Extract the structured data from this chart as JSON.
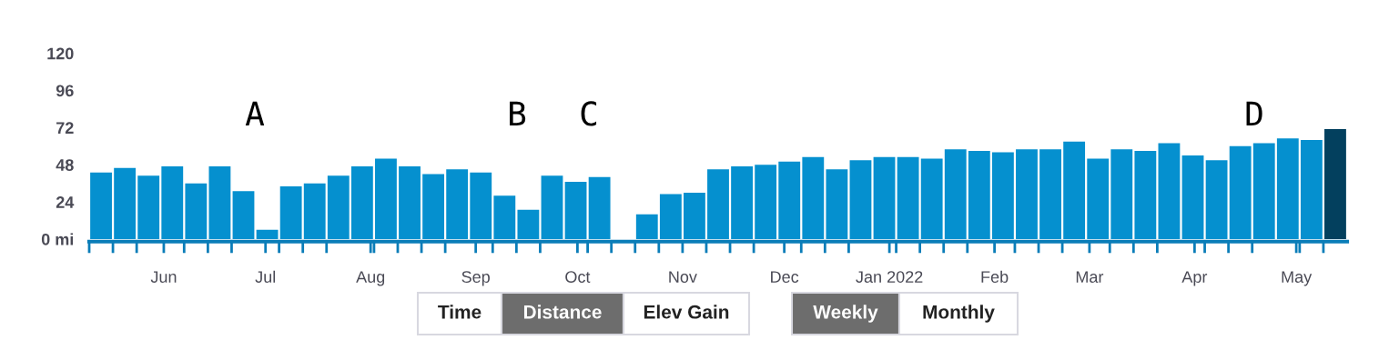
{
  "chart_data": {
    "type": "bar",
    "x": [
      "2021-05-13T12:00",
      "2021-05-20T12:00",
      "2021-05-27T12:00",
      "2021-06-03T12:00",
      "2021-06-10T12:00",
      "2021-06-17T12:00",
      "2021-06-24T12:00",
      "2021-07-01T12:00",
      "2021-07-08T12:00",
      "2021-07-15T12:00",
      "2021-07-22T12:00",
      "2021-07-29T12:00",
      "2021-08-05T12:00",
      "2021-08-12T12:00",
      "2021-08-19T12:00",
      "2021-08-26T12:00",
      "2021-09-02T12:00",
      "2021-09-09T12:00",
      "2021-09-16T12:00",
      "2021-09-23T12:00",
      "2021-09-30T12:00",
      "2021-10-07T12:00",
      "2021-10-14T12:00",
      "2021-10-21T12:00",
      "2021-10-28T12:00",
      "2021-11-04T12:00",
      "2021-11-11T12:00",
      "2021-11-18T12:00",
      "2021-11-25T12:00",
      "2021-12-02T12:00",
      "2021-12-09T12:00",
      "2021-12-16T12:00",
      "2021-12-23T12:00",
      "2021-12-30T12:00",
      "2022-01-06T12:00",
      "2022-01-13T12:00",
      "2022-01-20T12:00",
      "2022-01-27T12:00",
      "2022-02-03T12:00",
      "2022-02-10T12:00",
      "2022-02-17T12:00",
      "2022-02-24T12:00",
      "2022-03-03T12:00",
      "2022-03-10T12:00",
      "2022-03-17T12:00",
      "2022-03-24T12:00",
      "2022-03-31T12:00",
      "2022-04-07T12:00",
      "2022-04-14T12:00",
      "2022-04-21T12:00",
      "2022-04-28T12:00",
      "2022-05-05T12:00",
      "2022-05-12T12:00"
    ],
    "values": [
      43,
      46,
      41,
      47,
      36,
      47,
      31,
      6,
      34,
      36,
      41,
      47,
      52,
      47,
      42,
      45,
      43,
      28,
      19,
      41,
      37,
      40,
      0,
      16,
      29,
      30,
      45,
      47,
      48,
      50,
      53,
      45,
      51,
      53,
      53,
      52,
      58,
      57,
      56,
      58,
      58,
      63,
      52,
      58,
      57,
      62,
      54,
      51,
      60,
      62,
      65,
      64,
      71
    ],
    "colors": [
      "#0590cf",
      "#0590cf",
      "#0590cf",
      "#0590cf",
      "#0590cf",
      "#0590cf",
      "#0590cf",
      "#0590cf",
      "#0590cf",
      "#0590cf",
      "#0590cf",
      "#0590cf",
      "#0590cf",
      "#0590cf",
      "#0590cf",
      "#0590cf",
      "#0590cf",
      "#0590cf",
      "#0590cf",
      "#0590cf",
      "#0590cf",
      "#0590cf",
      "#0590cf",
      "#0590cf",
      "#0590cf",
      "#0590cf",
      "#0590cf",
      "#0590cf",
      "#0590cf",
      "#0590cf",
      "#0590cf",
      "#0590cf",
      "#0590cf",
      "#0590cf",
      "#0590cf",
      "#0590cf",
      "#0590cf",
      "#0590cf",
      "#0590cf",
      "#0590cf",
      "#0590cf",
      "#0590cf",
      "#0590cf",
      "#0590cf",
      "#0590cf",
      "#0590cf",
      "#0590cf",
      "#0590cf",
      "#0590cf",
      "#0590cf",
      "#0590cf",
      "#0590cf",
      "#03405e"
    ],
    "xlim": [
      "2021-05-10",
      "2022-05-16"
    ],
    "xticks": [
      {
        "value": "2021-05-10",
        "label": null
      },
      {
        "value": "2021-05-17",
        "label": null
      },
      {
        "value": "2021-05-24",
        "label": null
      },
      {
        "value": "2021-06-01",
        "label": "Jun"
      },
      {
        "value": "2021-06-07",
        "label": null
      },
      {
        "value": "2021-06-14",
        "label": null
      },
      {
        "value": "2021-06-21",
        "label": null
      },
      {
        "value": "2021-07-01",
        "label": "Jul"
      },
      {
        "value": "2021-07-05",
        "label": null
      },
      {
        "value": "2021-07-12",
        "label": null
      },
      {
        "value": "2021-07-19",
        "label": null
      },
      {
        "value": "2021-08-01",
        "label": "Aug"
      },
      {
        "value": "2021-08-02",
        "label": null
      },
      {
        "value": "2021-08-09",
        "label": null
      },
      {
        "value": "2021-08-16",
        "label": null
      },
      {
        "value": "2021-08-23",
        "label": null
      },
      {
        "value": "2021-09-01",
        "label": "Sep"
      },
      {
        "value": "2021-09-06",
        "label": null
      },
      {
        "value": "2021-09-13",
        "label": null
      },
      {
        "value": "2021-09-20",
        "label": null
      },
      {
        "value": "2021-10-01",
        "label": "Oct"
      },
      {
        "value": "2021-10-04",
        "label": null
      },
      {
        "value": "2021-10-11",
        "label": null
      },
      {
        "value": "2021-10-18",
        "label": null
      },
      {
        "value": "2021-10-25",
        "label": null
      },
      {
        "value": "2021-11-01",
        "label": "Nov"
      },
      {
        "value": "2021-11-08",
        "label": null
      },
      {
        "value": "2021-11-15",
        "label": null
      },
      {
        "value": "2021-11-22",
        "label": null
      },
      {
        "value": "2021-12-01",
        "label": "Dec"
      },
      {
        "value": "2021-12-06",
        "label": null
      },
      {
        "value": "2021-12-13",
        "label": null
      },
      {
        "value": "2021-12-20",
        "label": null
      },
      {
        "value": "2022-01-01",
        "label": "Jan 2022"
      },
      {
        "value": "2022-01-03",
        "label": null
      },
      {
        "value": "2022-01-10",
        "label": null
      },
      {
        "value": "2022-01-17",
        "label": null
      },
      {
        "value": "2022-01-24",
        "label": null
      },
      {
        "value": "2022-02-01",
        "label": "Feb"
      },
      {
        "value": "2022-02-07",
        "label": null
      },
      {
        "value": "2022-02-14",
        "label": null
      },
      {
        "value": "2022-02-21",
        "label": null
      },
      {
        "value": "2022-03-01",
        "label": "Mar"
      },
      {
        "value": "2022-03-07",
        "label": null
      },
      {
        "value": "2022-03-14",
        "label": null
      },
      {
        "value": "2022-03-21",
        "label": null
      },
      {
        "value": "2022-04-01",
        "label": "Apr"
      },
      {
        "value": "2022-04-04",
        "label": null
      },
      {
        "value": "2022-04-11",
        "label": null
      },
      {
        "value": "2022-04-18",
        "label": null
      },
      {
        "value": "2022-05-01",
        "label": "May"
      },
      {
        "value": "2022-05-02",
        "label": null
      },
      {
        "value": "2022-05-09",
        "label": null
      }
    ],
    "ylim": [
      0,
      120
    ],
    "yticks": [
      {
        "value": 0,
        "label": "0 mi"
      },
      24,
      48,
      72,
      96,
      120
    ],
    "grid": false,
    "annotations": [
      "A",
      "B",
      "C",
      "D",
      "Time",
      "Distance",
      "Elev Gain",
      "Weekly",
      "Monthly"
    ]
  }
}
